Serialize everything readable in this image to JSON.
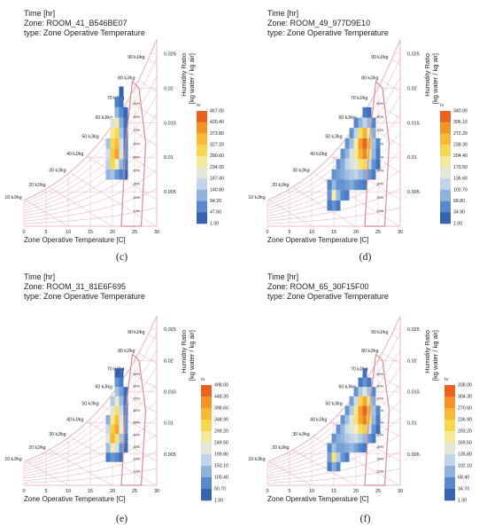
{
  "chart_data": [
    {
      "type": "heatmap",
      "panel_label": "(c)",
      "header": [
        "Time [hr]",
        "Zone: ROOM_41_B546BE07",
        "type: Zone Operative Temperature"
      ],
      "xlabel": "Zone Operative Temperature [C]",
      "ylabel": "Humidity Ratio [kg water / kg air]",
      "x_ticks": [
        "0",
        "5",
        "10",
        "15",
        "20",
        "25",
        "30"
      ],
      "y_ticks": [
        "0.005",
        "0.01",
        "0.015",
        "0.02",
        "0.025"
      ],
      "enthalpy_labels": [
        "10 kJ/kg",
        "20 kJ/kg",
        "30 kJ/kg",
        "40 kJ/kg",
        "50 kJ/kg",
        "60 kJ/kg",
        "70 kJ/kg",
        "80 kJ/kg",
        "90 kJ/kg"
      ],
      "rh_labels": [
        "10%",
        "20%",
        "30%",
        "40%",
        "50%",
        "60%",
        "70%",
        "80%",
        "90%"
      ],
      "colorbar_unit": "hr",
      "colorbar_labels": [
        "467.00",
        "420.40",
        "373.80",
        "327.20",
        "280.60",
        "234.00",
        "187.40",
        "140.80",
        "94.20",
        "47.60",
        "1.00"
      ],
      "vmin": 1,
      "vmax": 467,
      "xlim": [
        0,
        30
      ],
      "ylim": [
        0,
        0.027
      ],
      "cell": {
        "dx": 1,
        "dw": 0.0015
      },
      "cells": [
        [
          19,
          0.0075,
          120
        ],
        [
          20,
          0.0075,
          140
        ],
        [
          21,
          0.0075,
          90
        ],
        [
          22,
          0.0075,
          60
        ],
        [
          23,
          0.0075,
          30
        ],
        [
          19,
          0.009,
          160
        ],
        [
          20,
          0.009,
          300
        ],
        [
          21,
          0.009,
          240
        ],
        [
          22,
          0.009,
          120
        ],
        [
          23,
          0.009,
          50
        ],
        [
          19,
          0.0105,
          180
        ],
        [
          20,
          0.0105,
          320
        ],
        [
          21,
          0.0105,
          380
        ],
        [
          22,
          0.0105,
          200
        ],
        [
          23,
          0.0105,
          70
        ],
        [
          19,
          0.012,
          140
        ],
        [
          20,
          0.012,
          300
        ],
        [
          21,
          0.012,
          340
        ],
        [
          22,
          0.012,
          180
        ],
        [
          23,
          0.012,
          60
        ],
        [
          20,
          0.0135,
          260
        ],
        [
          21,
          0.0135,
          300
        ],
        [
          22,
          0.0135,
          140
        ],
        [
          23,
          0.0135,
          50
        ],
        [
          20,
          0.015,
          200
        ],
        [
          21,
          0.015,
          250
        ],
        [
          22,
          0.015,
          110
        ],
        [
          23,
          0.015,
          40
        ],
        [
          21,
          0.0165,
          120
        ],
        [
          22,
          0.0165,
          70
        ],
        [
          23,
          0.0165,
          30
        ],
        [
          21,
          0.018,
          60
        ],
        [
          22,
          0.018,
          40
        ],
        [
          22,
          0.0195,
          20
        ]
      ]
    },
    {
      "type": "heatmap",
      "panel_label": "(d)",
      "header": [
        "Time [hr]",
        "Zone: ROOM_49_977D9E10",
        "type: Zone Operative Temperature"
      ],
      "xlabel": "Zone Operative Temperature [C]",
      "ylabel": "Humidity Ratio [kg water / kg air]",
      "x_ticks": [
        "0",
        "5",
        "10",
        "15",
        "20",
        "25",
        "30"
      ],
      "y_ticks": [
        "0.005",
        "0.01",
        "0.015",
        "0.02",
        "0.025"
      ],
      "enthalpy_labels": [
        "10 kJ/kg",
        "20 kJ/kg",
        "30 kJ/kg",
        "40 kJ/kg",
        "50 kJ/kg",
        "60 kJ/kg",
        "70 kJ/kg",
        "80 kJ/kg",
        "90 kJ/kg"
      ],
      "rh_labels": [
        "10%",
        "20%",
        "30%",
        "40%",
        "50%",
        "60%",
        "70%",
        "80%",
        "90%"
      ],
      "colorbar_unit": "hr",
      "colorbar_labels": [
        "340.00",
        "306.10",
        "272.20",
        "238.30",
        "204.40",
        "170.50",
        "136.60",
        "102.70",
        "68.80",
        "34.90",
        "1.00"
      ],
      "vmin": 1,
      "vmax": 340,
      "xlim": [
        0,
        30
      ],
      "ylim": [
        0,
        0.027
      ],
      "cell": {
        "dx": 1,
        "dw": 0.0015
      },
      "cells": [
        [
          14,
          0.003,
          40
        ],
        [
          15,
          0.003,
          60
        ],
        [
          16,
          0.003,
          40
        ],
        [
          14,
          0.0045,
          60
        ],
        [
          15,
          0.0045,
          180
        ],
        [
          16,
          0.0045,
          90
        ],
        [
          17,
          0.0045,
          50
        ],
        [
          18,
          0.0045,
          40
        ],
        [
          14,
          0.006,
          50
        ],
        [
          15,
          0.006,
          90
        ],
        [
          16,
          0.006,
          60
        ],
        [
          17,
          0.006,
          60
        ],
        [
          18,
          0.006,
          70
        ],
        [
          19,
          0.006,
          80
        ],
        [
          20,
          0.006,
          60
        ],
        [
          21,
          0.006,
          50
        ],
        [
          22,
          0.006,
          40
        ],
        [
          15,
          0.0075,
          60
        ],
        [
          16,
          0.0075,
          70
        ],
        [
          17,
          0.0075,
          80
        ],
        [
          18,
          0.0075,
          100
        ],
        [
          19,
          0.0075,
          110
        ],
        [
          20,
          0.0075,
          120
        ],
        [
          21,
          0.0075,
          100
        ],
        [
          22,
          0.0075,
          80
        ],
        [
          23,
          0.0075,
          60
        ],
        [
          24,
          0.0075,
          40
        ],
        [
          16,
          0.009,
          60
        ],
        [
          17,
          0.009,
          80
        ],
        [
          18,
          0.009,
          120
        ],
        [
          19,
          0.009,
          140
        ],
        [
          20,
          0.009,
          160
        ],
        [
          21,
          0.009,
          200
        ],
        [
          22,
          0.009,
          220
        ],
        [
          23,
          0.009,
          120
        ],
        [
          24,
          0.009,
          60
        ],
        [
          25,
          0.009,
          30
        ],
        [
          17,
          0.0105,
          60
        ],
        [
          18,
          0.0105,
          90
        ],
        [
          19,
          0.0105,
          140
        ],
        [
          20,
          0.0105,
          190
        ],
        [
          21,
          0.0105,
          260
        ],
        [
          22,
          0.0105,
          300
        ],
        [
          23,
          0.0105,
          200
        ],
        [
          24,
          0.0105,
          90
        ],
        [
          25,
          0.0105,
          40
        ],
        [
          18,
          0.012,
          60
        ],
        [
          19,
          0.012,
          100
        ],
        [
          20,
          0.012,
          180
        ],
        [
          21,
          0.012,
          280
        ],
        [
          22,
          0.012,
          320
        ],
        [
          23,
          0.012,
          240
        ],
        [
          24,
          0.012,
          100
        ],
        [
          25,
          0.012,
          50
        ],
        [
          19,
          0.0135,
          60
        ],
        [
          20,
          0.0135,
          120
        ],
        [
          21,
          0.0135,
          210
        ],
        [
          22,
          0.0135,
          260
        ],
        [
          23,
          0.0135,
          180
        ],
        [
          24,
          0.0135,
          80
        ],
        [
          20,
          0.015,
          50
        ],
        [
          21,
          0.015,
          90
        ],
        [
          22,
          0.015,
          120
        ],
        [
          23,
          0.015,
          90
        ],
        [
          24,
          0.015,
          50
        ],
        [
          22,
          0.0165,
          40
        ],
        [
          23,
          0.0165,
          30
        ]
      ]
    },
    {
      "type": "heatmap",
      "panel_label": "(e)",
      "header": [
        "Time [hr]",
        "Zone: ROOM_31_81E6F695",
        "type: Zone Operative Temperature"
      ],
      "xlabel": "Zone Operative Temperature [C]",
      "ylabel": "Humidity Ratio [kg water / kg air]",
      "x_ticks": [
        "0",
        "5",
        "10",
        "15",
        "20",
        "25",
        "30"
      ],
      "y_ticks": [
        "0.005",
        "0.01",
        "0.015",
        "0.02",
        "0.025"
      ],
      "enthalpy_labels": [
        "10 kJ/kg",
        "20 kJ/kg",
        "30 kJ/kg",
        "40 kJ/kg",
        "50 kJ/kg",
        "60 kJ/kg",
        "70 kJ/kg",
        "80 kJ/kg",
        "90 kJ/kg"
      ],
      "rh_labels": [
        "10%",
        "20%",
        "30%",
        "40%",
        "50%",
        "60%",
        "70%",
        "80%",
        "90%"
      ],
      "colorbar_unit": "hr",
      "colorbar_labels": [
        "498.00",
        "448.30",
        "398.60",
        "348.90",
        "299.20",
        "249.50",
        "199.80",
        "150.10",
        "100.40",
        "50.70",
        "1.00"
      ],
      "vmin": 1,
      "vmax": 498,
      "xlim": [
        0,
        30
      ],
      "ylim": [
        0,
        0.027
      ],
      "cell": {
        "dx": 1,
        "dw": 0.0015
      },
      "cells": [
        [
          19,
          0.0045,
          60
        ],
        [
          20,
          0.0045,
          90
        ],
        [
          21,
          0.0045,
          70
        ],
        [
          22,
          0.0045,
          40
        ],
        [
          19,
          0.006,
          140
        ],
        [
          20,
          0.006,
          260
        ],
        [
          21,
          0.006,
          200
        ],
        [
          22,
          0.006,
          90
        ],
        [
          23,
          0.006,
          40
        ],
        [
          19,
          0.0075,
          220
        ],
        [
          20,
          0.0075,
          380
        ],
        [
          21,
          0.0075,
          300
        ],
        [
          22,
          0.0075,
          150
        ],
        [
          23,
          0.0075,
          60
        ],
        [
          19,
          0.009,
          180
        ],
        [
          20,
          0.009,
          340
        ],
        [
          21,
          0.009,
          400
        ],
        [
          22,
          0.009,
          240
        ],
        [
          23,
          0.009,
          90
        ],
        [
          19,
          0.0105,
          120
        ],
        [
          20,
          0.0105,
          280
        ],
        [
          21,
          0.0105,
          360
        ],
        [
          22,
          0.0105,
          220
        ],
        [
          23,
          0.0105,
          80
        ],
        [
          20,
          0.012,
          220
        ],
        [
          21,
          0.012,
          300
        ],
        [
          22,
          0.012,
          180
        ],
        [
          23,
          0.012,
          60
        ],
        [
          20,
          0.0135,
          160
        ],
        [
          21,
          0.0135,
          240
        ],
        [
          22,
          0.0135,
          140
        ],
        [
          23,
          0.0135,
          50
        ],
        [
          21,
          0.015,
          150
        ],
        [
          22,
          0.015,
          100
        ],
        [
          23,
          0.015,
          40
        ],
        [
          21,
          0.0165,
          90
        ],
        [
          22,
          0.0165,
          60
        ],
        [
          22,
          0.018,
          30
        ],
        [
          21,
          0.018,
          20
        ]
      ]
    },
    {
      "type": "heatmap",
      "panel_label": "(f)",
      "header": [
        "Time [hr]",
        "Zone: ROOM_65_30F15F00",
        "type: Zone Operative Temperature"
      ],
      "xlabel": "Zone Operative Temperature [C]",
      "ylabel": "Humidity Ratio [kg water / kg air]",
      "x_ticks": [
        "0",
        "5",
        "10",
        "15",
        "20",
        "25",
        "30"
      ],
      "y_ticks": [
        "0.005",
        "0.01",
        "0.015",
        "0.02",
        "0.025"
      ],
      "enthalpy_labels": [
        "10 kJ/kg",
        "20 kJ/kg",
        "30 kJ/kg",
        "40 kJ/kg",
        "50 kJ/kg",
        "60 kJ/kg",
        "70 kJ/kg",
        "80 kJ/kg",
        "90 kJ/kg"
      ],
      "rh_labels": [
        "10%",
        "20%",
        "30%",
        "40%",
        "50%",
        "60%",
        "70%",
        "80%",
        "90%"
      ],
      "colorbar_unit": "hr",
      "colorbar_labels": [
        "338.00",
        "304.30",
        "270.60",
        "236.90",
        "203.20",
        "169.50",
        "135.80",
        "102.10",
        "68.40",
        "34.70",
        "1.00"
      ],
      "vmin": 1,
      "vmax": 338,
      "xlim": [
        0,
        30
      ],
      "ylim": [
        0,
        0.027
      ],
      "cell": {
        "dx": 1,
        "dw": 0.0015
      },
      "cells": [
        [
          14,
          0.003,
          40
        ],
        [
          15,
          0.003,
          80
        ],
        [
          16,
          0.003,
          50
        ],
        [
          14,
          0.0045,
          70
        ],
        [
          15,
          0.0045,
          200
        ],
        [
          16,
          0.0045,
          110
        ],
        [
          17,
          0.0045,
          60
        ],
        [
          18,
          0.0045,
          40
        ],
        [
          14,
          0.006,
          50
        ],
        [
          15,
          0.006,
          100
        ],
        [
          16,
          0.006,
          70
        ],
        [
          17,
          0.006,
          70
        ],
        [
          18,
          0.006,
          80
        ],
        [
          19,
          0.006,
          90
        ],
        [
          20,
          0.006,
          70
        ],
        [
          21,
          0.006,
          50
        ],
        [
          22,
          0.006,
          40
        ],
        [
          15,
          0.0075,
          60
        ],
        [
          16,
          0.0075,
          80
        ],
        [
          17,
          0.0075,
          90
        ],
        [
          18,
          0.0075,
          110
        ],
        [
          19,
          0.0075,
          120
        ],
        [
          20,
          0.0075,
          130
        ],
        [
          21,
          0.0075,
          110
        ],
        [
          22,
          0.0075,
          90
        ],
        [
          23,
          0.0075,
          60
        ],
        [
          24,
          0.0075,
          40
        ],
        [
          16,
          0.009,
          60
        ],
        [
          17,
          0.009,
          90
        ],
        [
          18,
          0.009,
          130
        ],
        [
          19,
          0.009,
          150
        ],
        [
          20,
          0.009,
          170
        ],
        [
          21,
          0.009,
          210
        ],
        [
          22,
          0.009,
          230
        ],
        [
          23,
          0.009,
          130
        ],
        [
          24,
          0.009,
          60
        ],
        [
          25,
          0.009,
          30
        ],
        [
          17,
          0.0105,
          60
        ],
        [
          18,
          0.0105,
          100
        ],
        [
          19,
          0.0105,
          150
        ],
        [
          20,
          0.0105,
          200
        ],
        [
          21,
          0.0105,
          270
        ],
        [
          22,
          0.0105,
          300
        ],
        [
          23,
          0.0105,
          210
        ],
        [
          24,
          0.0105,
          90
        ],
        [
          25,
          0.0105,
          40
        ],
        [
          18,
          0.012,
          60
        ],
        [
          19,
          0.012,
          110
        ],
        [
          20,
          0.012,
          190
        ],
        [
          21,
          0.012,
          280
        ],
        [
          22,
          0.012,
          320
        ],
        [
          23,
          0.012,
          250
        ],
        [
          24,
          0.012,
          100
        ],
        [
          25,
          0.012,
          50
        ],
        [
          19,
          0.0135,
          70
        ],
        [
          20,
          0.0135,
          130
        ],
        [
          21,
          0.0135,
          220
        ],
        [
          22,
          0.0135,
          270
        ],
        [
          23,
          0.0135,
          190
        ],
        [
          24,
          0.0135,
          80
        ],
        [
          20,
          0.015,
          60
        ],
        [
          21,
          0.015,
          110
        ],
        [
          22,
          0.015,
          150
        ],
        [
          23,
          0.015,
          100
        ],
        [
          24,
          0.015,
          50
        ],
        [
          21,
          0.0165,
          40
        ],
        [
          22,
          0.0165,
          60
        ],
        [
          23,
          0.0165,
          40
        ],
        [
          22,
          0.018,
          30
        ]
      ]
    }
  ],
  "colors": {
    "grid_line": "#e3a9b0",
    "comfort_zone": "#d88c96",
    "text": "#222222",
    "scale": [
      "#2b4fa0",
      "#4a7fc8",
      "#8fb3dc",
      "#cddcec",
      "#f2efc9",
      "#f6de55",
      "#f7b936",
      "#f28a25",
      "#e6461d"
    ]
  }
}
